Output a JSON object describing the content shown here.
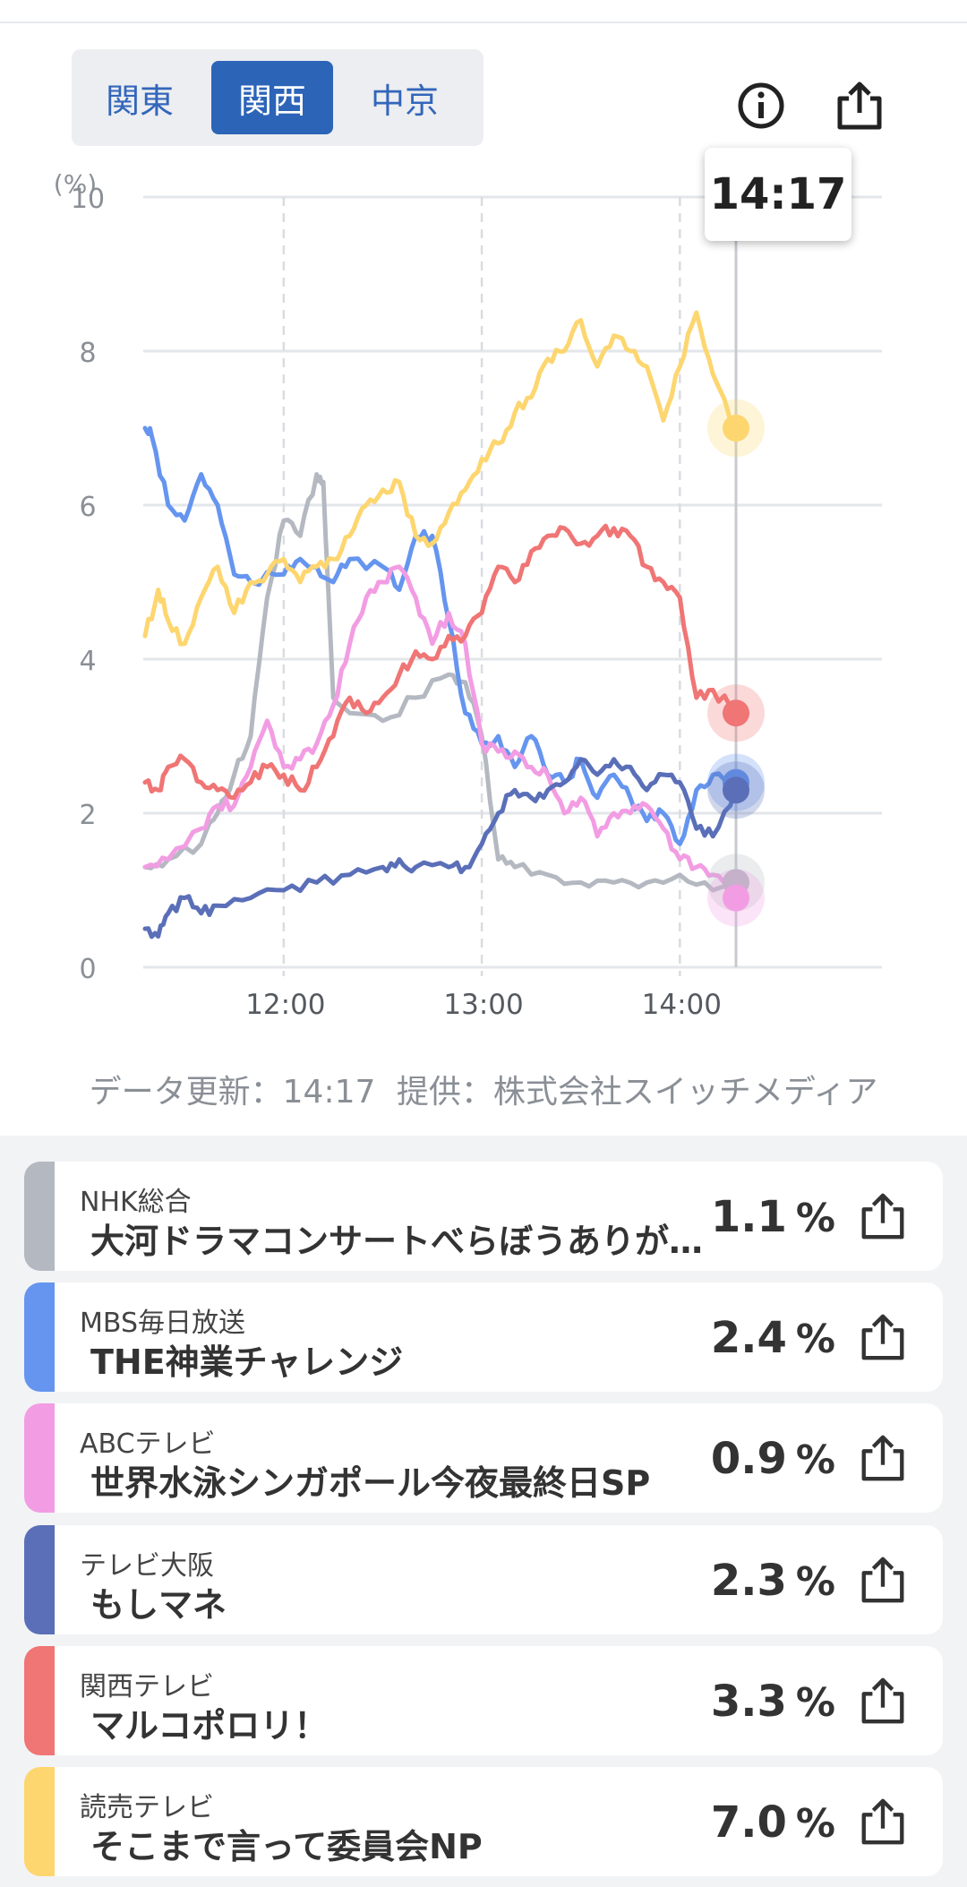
{
  "regions": [
    {
      "label": "関東",
      "active": false
    },
    {
      "label": "関西",
      "active": true
    },
    {
      "label": "中京",
      "active": false
    }
  ],
  "icons": {
    "info": "info-circle-icon",
    "share": "share-upload-icon"
  },
  "tooltip_time": "14:17",
  "source": {
    "updated": "データ更新：14:17",
    "provider": "提供：株式会社スイッチメディア"
  },
  "channels": [
    {
      "station": "NHK総合",
      "program": "大河ドラマコンサートべらぼうありがとう",
      "rating": "1.1",
      "unit": "%",
      "color": "#b4b9c1"
    },
    {
      "station": "MBS毎日放送",
      "program": "THE神業チャレンジ",
      "rating": "2.4",
      "unit": "%",
      "color": "#6595ef"
    },
    {
      "station": "ABCテレビ",
      "program": "世界水泳シンガポール今夜最終日SP",
      "rating": "0.9",
      "unit": "%",
      "color": "#f29de3"
    },
    {
      "station": "テレビ大阪",
      "program": "もしマネ",
      "rating": "2.3",
      "unit": "%",
      "color": "#5a6fb8"
    },
    {
      "station": "関西テレビ",
      "program": "マルコポロリ！",
      "rating": "3.3",
      "unit": "%",
      "color": "#f07575"
    },
    {
      "station": "読売テレビ",
      "program": "そこまで言って委員会NP",
      "rating": "7.0",
      "unit": "%",
      "color": "#fdd670"
    }
  ],
  "chart_data": {
    "type": "line",
    "ylabel": "(%)",
    "ylim": [
      0,
      10
    ],
    "yticks": [
      0,
      2,
      4,
      6,
      8,
      10
    ],
    "xlim": [
      "11:18",
      "14:17"
    ],
    "xticks": [
      "12:00",
      "13:00",
      "14:00"
    ],
    "cursor": "14:17",
    "series": [
      {
        "name": "NHK総合",
        "color": "#b4b9c1",
        "points": [
          [
            "11:18",
            1.3
          ],
          [
            "11:25",
            1.4
          ],
          [
            "11:35",
            1.6
          ],
          [
            "11:40",
            2.0
          ],
          [
            "11:45",
            2.5
          ],
          [
            "11:50",
            3.0
          ],
          [
            "11:55",
            4.8
          ],
          [
            "12:00",
            5.8
          ],
          [
            "12:05",
            5.6
          ],
          [
            "12:10",
            6.4
          ],
          [
            "12:12",
            6.3
          ],
          [
            "12:15",
            3.5
          ],
          [
            "12:20",
            3.3
          ],
          [
            "12:30",
            3.2
          ],
          [
            "12:40",
            3.5
          ],
          [
            "12:50",
            3.8
          ],
          [
            "12:55",
            3.7
          ],
          [
            "13:00",
            3.0
          ],
          [
            "13:05",
            1.4
          ],
          [
            "13:10",
            1.3
          ],
          [
            "13:20",
            1.2
          ],
          [
            "13:30",
            1.1
          ],
          [
            "13:40",
            1.1
          ],
          [
            "13:50",
            1.1
          ],
          [
            "14:00",
            1.2
          ],
          [
            "14:10",
            1.0
          ],
          [
            "14:17",
            1.1
          ]
        ]
      },
      {
        "name": "MBS毎日放送",
        "color": "#6595ef",
        "points": [
          [
            "11:18",
            7.0
          ],
          [
            "11:20",
            6.9
          ],
          [
            "11:25",
            6.0
          ],
          [
            "11:30",
            5.8
          ],
          [
            "11:35",
            6.4
          ],
          [
            "11:40",
            6.0
          ],
          [
            "11:45",
            5.1
          ],
          [
            "11:50",
            5.0
          ],
          [
            "12:00",
            5.1
          ],
          [
            "12:05",
            5.3
          ],
          [
            "12:10",
            5.2
          ],
          [
            "12:15",
            5.0
          ],
          [
            "12:20",
            5.3
          ],
          [
            "12:30",
            5.2
          ],
          [
            "12:35",
            4.9
          ],
          [
            "12:40",
            5.6
          ],
          [
            "12:45",
            5.6
          ],
          [
            "12:50",
            4.5
          ],
          [
            "12:55",
            3.3
          ],
          [
            "13:00",
            2.9
          ],
          [
            "13:05",
            3.0
          ],
          [
            "13:10",
            2.6
          ],
          [
            "13:15",
            3.0
          ],
          [
            "13:20",
            2.5
          ],
          [
            "13:25",
            2.4
          ],
          [
            "13:30",
            2.7
          ],
          [
            "13:35",
            2.2
          ],
          [
            "13:40",
            2.5
          ],
          [
            "13:45",
            2.2
          ],
          [
            "13:50",
            1.9
          ],
          [
            "13:55",
            2.0
          ],
          [
            "14:00",
            1.6
          ],
          [
            "14:05",
            2.3
          ],
          [
            "14:10",
            2.5
          ],
          [
            "14:17",
            2.4
          ]
        ]
      },
      {
        "name": "ABCテレビ",
        "color": "#f29de3",
        "points": [
          [
            "11:18",
            1.3
          ],
          [
            "11:25",
            1.4
          ],
          [
            "11:35",
            1.8
          ],
          [
            "11:40",
            2.1
          ],
          [
            "11:45",
            2.1
          ],
          [
            "11:50",
            2.6
          ],
          [
            "11:55",
            3.2
          ],
          [
            "12:00",
            2.6
          ],
          [
            "12:05",
            2.7
          ],
          [
            "12:10",
            2.9
          ],
          [
            "12:15",
            3.4
          ],
          [
            "12:20",
            4.2
          ],
          [
            "12:25",
            4.8
          ],
          [
            "12:30",
            5.0
          ],
          [
            "12:35",
            5.2
          ],
          [
            "12:40",
            4.8
          ],
          [
            "12:45",
            4.2
          ],
          [
            "12:50",
            4.6
          ],
          [
            "12:55",
            4.2
          ],
          [
            "13:00",
            2.9
          ],
          [
            "13:05",
            2.8
          ],
          [
            "13:10",
            2.8
          ],
          [
            "13:15",
            2.6
          ],
          [
            "13:20",
            2.5
          ],
          [
            "13:25",
            2.0
          ],
          [
            "13:30",
            2.2
          ],
          [
            "13:35",
            1.7
          ],
          [
            "13:40",
            2.0
          ],
          [
            "13:45",
            2.0
          ],
          [
            "13:50",
            2.1
          ],
          [
            "13:55",
            1.8
          ],
          [
            "14:00",
            1.4
          ],
          [
            "14:05",
            1.3
          ],
          [
            "14:10",
            1.2
          ],
          [
            "14:17",
            0.9
          ]
        ]
      },
      {
        "name": "テレビ大阪",
        "color": "#5a6fb8",
        "points": [
          [
            "11:18",
            0.5
          ],
          [
            "11:22",
            0.4
          ],
          [
            "11:25",
            0.7
          ],
          [
            "11:30",
            0.9
          ],
          [
            "11:35",
            0.7
          ],
          [
            "11:40",
            0.8
          ],
          [
            "11:50",
            0.9
          ],
          [
            "12:00",
            1.0
          ],
          [
            "12:10",
            1.1
          ],
          [
            "12:20",
            1.2
          ],
          [
            "12:30",
            1.3
          ],
          [
            "12:35",
            1.4
          ],
          [
            "12:40",
            1.3
          ],
          [
            "12:50",
            1.3
          ],
          [
            "12:55",
            1.3
          ],
          [
            "13:00",
            1.6
          ],
          [
            "13:05",
            2.0
          ],
          [
            "13:10",
            2.3
          ],
          [
            "13:15",
            2.2
          ],
          [
            "13:20",
            2.3
          ],
          [
            "13:25",
            2.4
          ],
          [
            "13:30",
            2.7
          ],
          [
            "13:35",
            2.5
          ],
          [
            "13:40",
            2.7
          ],
          [
            "13:45",
            2.6
          ],
          [
            "13:50",
            2.3
          ],
          [
            "13:55",
            2.5
          ],
          [
            "14:00",
            2.4
          ],
          [
            "14:05",
            1.8
          ],
          [
            "14:10",
            1.7
          ],
          [
            "14:17",
            2.3
          ]
        ]
      },
      {
        "name": "関西テレビ",
        "color": "#f07575",
        "points": [
          [
            "11:18",
            2.4
          ],
          [
            "11:22",
            2.3
          ],
          [
            "11:25",
            2.6
          ],
          [
            "11:30",
            2.7
          ],
          [
            "11:35",
            2.4
          ],
          [
            "11:40",
            2.3
          ],
          [
            "11:45",
            2.2
          ],
          [
            "11:50",
            2.4
          ],
          [
            "11:55",
            2.6
          ],
          [
            "12:00",
            2.5
          ],
          [
            "12:05",
            2.3
          ],
          [
            "12:10",
            2.6
          ],
          [
            "12:15",
            3.0
          ],
          [
            "12:20",
            3.5
          ],
          [
            "12:25",
            3.3
          ],
          [
            "12:30",
            3.5
          ],
          [
            "12:35",
            3.8
          ],
          [
            "12:40",
            4.1
          ],
          [
            "12:45",
            4.0
          ],
          [
            "12:50",
            4.3
          ],
          [
            "12:55",
            4.3
          ],
          [
            "13:00",
            4.6
          ],
          [
            "13:05",
            5.2
          ],
          [
            "13:10",
            5.0
          ],
          [
            "13:15",
            5.4
          ],
          [
            "13:20",
            5.6
          ],
          [
            "13:25",
            5.7
          ],
          [
            "13:30",
            5.5
          ],
          [
            "13:35",
            5.6
          ],
          [
            "13:40",
            5.7
          ],
          [
            "13:45",
            5.6
          ],
          [
            "13:50",
            5.2
          ],
          [
            "13:55",
            5.0
          ],
          [
            "14:00",
            4.8
          ],
          [
            "14:05",
            3.5
          ],
          [
            "14:10",
            3.6
          ],
          [
            "14:17",
            3.3
          ]
        ]
      },
      {
        "name": "読売テレビ",
        "color": "#fdd670",
        "points": [
          [
            "11:18",
            4.3
          ],
          [
            "11:22",
            4.9
          ],
          [
            "11:25",
            4.5
          ],
          [
            "11:30",
            4.2
          ],
          [
            "11:35",
            4.8
          ],
          [
            "11:40",
            5.2
          ],
          [
            "11:45",
            4.6
          ],
          [
            "11:50",
            5.0
          ],
          [
            "11:55",
            5.1
          ],
          [
            "12:00",
            5.3
          ],
          [
            "12:05",
            5.0
          ],
          [
            "12:10",
            5.2
          ],
          [
            "12:15",
            5.3
          ],
          [
            "12:20",
            5.6
          ],
          [
            "12:25",
            6.0
          ],
          [
            "12:30",
            6.2
          ],
          [
            "12:35",
            6.3
          ],
          [
            "12:40",
            5.6
          ],
          [
            "12:45",
            5.5
          ],
          [
            "12:50",
            5.9
          ],
          [
            "12:55",
            6.2
          ],
          [
            "13:00",
            6.6
          ],
          [
            "13:05",
            6.8
          ],
          [
            "13:10",
            7.2
          ],
          [
            "13:15",
            7.4
          ],
          [
            "13:20",
            7.9
          ],
          [
            "13:25",
            8.0
          ],
          [
            "13:30",
            8.4
          ],
          [
            "13:35",
            7.8
          ],
          [
            "13:40",
            8.2
          ],
          [
            "13:45",
            8.0
          ],
          [
            "13:50",
            7.8
          ],
          [
            "13:55",
            7.1
          ],
          [
            "14:00",
            7.8
          ],
          [
            "14:05",
            8.5
          ],
          [
            "14:10",
            7.7
          ],
          [
            "14:17",
            7.0
          ]
        ]
      }
    ]
  }
}
